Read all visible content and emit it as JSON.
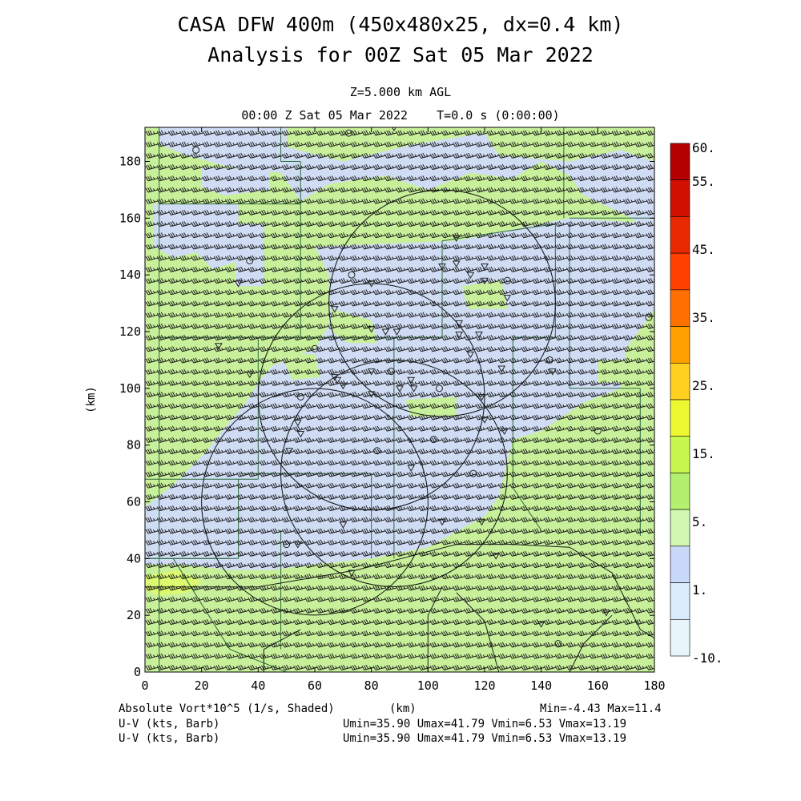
{
  "header": {
    "title_line1": "CASA DFW 400m (450x480x25, dx=0.4 km)",
    "title_line2": "Analysis for 00Z Sat 05 Mar 2022",
    "level": "Z=5.000 km AGL",
    "time": "00:00 Z Sat 05 Mar 2022    T=0.0 s (0:00:00)"
  },
  "footer": {
    "field_label": "Absolute Vort*10^5 (1/s, Shaded)",
    "x_unit": "(km)",
    "field_range": "Min=-4.43 Max=11.4",
    "wind1_label": "U-V (kts, Barb)",
    "wind1_range": "Umin=35.90 Umax=41.79 Vmin=6.53 Vmax=13.19",
    "wind2_label": "U-V (kts, Barb)",
    "wind2_range": "Umin=35.90 Umax=41.79 Vmin=6.53 Vmax=13.19"
  },
  "chart_data": {
    "type": "heatmap",
    "xlabel": "",
    "ylabel": "(km)",
    "xlim": [
      0,
      180
    ],
    "ylim": [
      0,
      192
    ],
    "x_ticks": [
      0,
      20,
      40,
      60,
      80,
      100,
      120,
      140,
      160,
      180
    ],
    "y_ticks": [
      0,
      20,
      40,
      60,
      80,
      100,
      120,
      140,
      160,
      180
    ],
    "colorbar": {
      "labels": [
        "60.",
        "55.",
        "45.",
        "35.",
        "25.",
        "15.",
        "5.",
        "1.",
        "-10."
      ],
      "colors": [
        "#b40000",
        "#d21000",
        "#e82800",
        "#ff4000",
        "#ff7000",
        "#ffa000",
        "#ffd020",
        "#eef830",
        "#c8f850",
        "#b4f070",
        "#d0f8b0",
        "#c8d8f8",
        "#d8ecfc",
        "#e8f6fc"
      ]
    },
    "field_colors": {
      "green": "#c8f09a",
      "blue": "#cfdcf4",
      "bright_green": "#dcfa70"
    },
    "radar_rings": [
      {
        "center": [
          105,
          130
        ],
        "radius_km": 40
      },
      {
        "center": [
          80,
          97
        ],
        "radius_km": 40
      },
      {
        "center": [
          88,
          70
        ],
        "radius_km": 40
      },
      {
        "center": [
          60,
          60
        ],
        "radius_km": 40
      }
    ],
    "wind_barb": {
      "u_kts": 38.8,
      "v_kts": 9.9
    }
  }
}
